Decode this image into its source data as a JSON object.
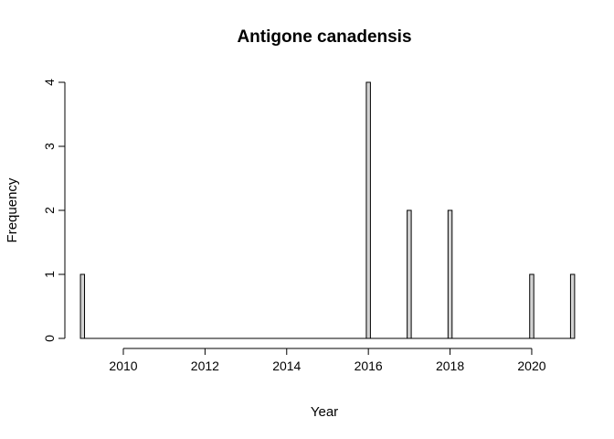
{
  "chart_data": {
    "type": "bar",
    "title": "Antigone canadensis",
    "xlabel": "Year",
    "ylabel": "Frequency",
    "x_range": [
      2009,
      2021
    ],
    "xlim": [
      2008.3,
      2021.5
    ],
    "ylim": [
      0,
      4
    ],
    "x_ticks": [
      "2010",
      "2012",
      "2014",
      "2016",
      "2018",
      "2020"
    ],
    "y_ticks": [
      "0",
      "1",
      "2",
      "3",
      "4"
    ],
    "bin_width_years": 0.1,
    "points": [
      {
        "x": 2009,
        "y": 1
      },
      {
        "x": 2016,
        "y": 4
      },
      {
        "x": 2017,
        "y": 2
      },
      {
        "x": 2018,
        "y": 2
      },
      {
        "x": 2020,
        "y": 1
      },
      {
        "x": 2021,
        "y": 1
      }
    ],
    "grid": false,
    "legend": "none",
    "colors": {
      "bar_fill": "#d3d3d3",
      "bar_stroke": "#000000"
    }
  }
}
